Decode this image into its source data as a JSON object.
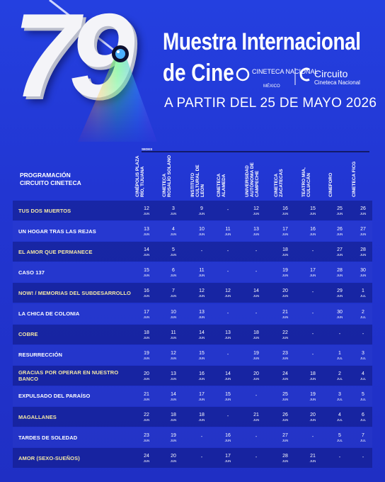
{
  "header": {
    "number": "79",
    "title_line1": "Muestra Internacional",
    "title_line2": "de Cine",
    "logo1_name": "CINETECA NACIONAL",
    "logo1_sub": "MÉXICO",
    "logo2_name": "Circuito",
    "logo2_sub": "Cineteca Nacional",
    "date": "A PARTIR DEL 25 DE MAYO 2026"
  },
  "table": {
    "section_label": "PROGRAMACIÓN CIRCUITO CINETECA",
    "venues_label": "SEDES",
    "venues": [
      "CINÉPOLIS PLAZA RÍO, TIJUANA",
      "CINETECA ROSALÍO SOLANO",
      "INSTITUTO CULTURAL DE LEÓN",
      "CINETECA ALAMEDA",
      "UNIVERSIDAD AUTÓNOMA DE CAMPECHE",
      "CINETECA ZACATECAS",
      "TEATRO MIA, CULIACÁN",
      "CINEFORO",
      "CINETECA FICG"
    ],
    "rows": [
      {
        "film": "TUS DOS MUERTOS",
        "cells": [
          {
            "day": "12",
            "month": "JUN"
          },
          {
            "day": "3",
            "month": "JUN"
          },
          {
            "day": "9",
            "month": "JUN"
          },
          "-",
          {
            "day": "12",
            "month": "JUN"
          },
          {
            "day": "16",
            "month": "JUN"
          },
          {
            "day": "15",
            "month": "JUN"
          },
          {
            "day": "25",
            "month": "JUN"
          },
          {
            "day": "26",
            "month": "JUN"
          }
        ]
      },
      {
        "film": "UN HOGAR TRAS LAS REJAS",
        "cells": [
          {
            "day": "13",
            "month": "JUN"
          },
          {
            "day": "4",
            "month": "JUN"
          },
          {
            "day": "10",
            "month": "JUN"
          },
          {
            "day": "11",
            "month": "JUN"
          },
          {
            "day": "13",
            "month": "JUN"
          },
          {
            "day": "17",
            "month": "JUN"
          },
          {
            "day": "16",
            "month": "JUN"
          },
          {
            "day": "26",
            "month": "JUN"
          },
          {
            "day": "27",
            "month": "JUN"
          }
        ]
      },
      {
        "film": "EL AMOR QUE PERMANECE",
        "cells": [
          {
            "day": "14",
            "month": "JUN"
          },
          {
            "day": "5",
            "month": "JUN"
          },
          "-",
          "-",
          "-",
          {
            "day": "18",
            "month": "JUN"
          },
          "-",
          {
            "day": "27",
            "month": "JUN"
          },
          {
            "day": "28",
            "month": "JUN"
          }
        ]
      },
      {
        "film": "CASO 137",
        "cells": [
          {
            "day": "15",
            "month": "JUN"
          },
          {
            "day": "6",
            "month": "JUN"
          },
          {
            "day": "11",
            "month": "JUN"
          },
          "-",
          "-",
          {
            "day": "19",
            "month": "JUN"
          },
          {
            "day": "17",
            "month": "JUN"
          },
          {
            "day": "28",
            "month": "JUN"
          },
          {
            "day": "30",
            "month": "JUN"
          }
        ]
      },
      {
        "film": "NOW! / MEMORIAS DEL SUBDESARROLLO",
        "cells": [
          {
            "day": "16",
            "month": "JUN"
          },
          {
            "day": "7",
            "month": "JUN"
          },
          {
            "day": "12",
            "month": "JUN"
          },
          {
            "day": "12",
            "month": "JUN"
          },
          {
            "day": "14",
            "month": "JUN"
          },
          {
            "day": "20",
            "month": "JUN"
          },
          "-",
          {
            "day": "29",
            "month": "JUN"
          },
          {
            "day": "1",
            "month": "JUL"
          }
        ]
      },
      {
        "film": "LA CHICA DE COLONIA",
        "cells": [
          {
            "day": "17",
            "month": "JUN"
          },
          {
            "day": "10",
            "month": "JUN"
          },
          {
            "day": "13",
            "month": "JUN"
          },
          "-",
          "-",
          {
            "day": "21",
            "month": "JUN"
          },
          "-",
          {
            "day": "30",
            "month": "JUN"
          },
          {
            "day": "2",
            "month": "JUL"
          }
        ]
      },
      {
        "film": "COBRE",
        "cells": [
          {
            "day": "18",
            "month": "JUN"
          },
          {
            "day": "11",
            "month": "JUN"
          },
          {
            "day": "14",
            "month": "JUN"
          },
          {
            "day": "13",
            "month": "JUN"
          },
          {
            "day": "18",
            "month": "JUN"
          },
          {
            "day": "22",
            "month": "JUN"
          },
          "-",
          "-",
          "-"
        ]
      },
      {
        "film": "RESURRECCIÓN",
        "cells": [
          {
            "day": "19",
            "month": "JUN"
          },
          {
            "day": "12",
            "month": "JUN"
          },
          {
            "day": "15",
            "month": "JUN"
          },
          "-",
          {
            "day": "19",
            "month": "JUN"
          },
          {
            "day": "23",
            "month": "JUN"
          },
          "-",
          {
            "day": "1",
            "month": "JUL"
          },
          {
            "day": "3",
            "month": "JUL"
          }
        ]
      },
      {
        "film": "GRACIAS POR OPERAR EN NUESTRO BANCO",
        "cells": [
          {
            "day": "20",
            "month": "JUN"
          },
          {
            "day": "13",
            "month": "JUN"
          },
          {
            "day": "16",
            "month": "JUN"
          },
          {
            "day": "14",
            "month": "JUN"
          },
          {
            "day": "20",
            "month": "JUN"
          },
          {
            "day": "24",
            "month": "JUN"
          },
          {
            "day": "18",
            "month": "JUN"
          },
          {
            "day": "2",
            "month": "JUL"
          },
          {
            "day": "4",
            "month": "JUL"
          }
        ]
      },
      {
        "film": "EXPULSADO DEL PARAÍSO",
        "cells": [
          {
            "day": "21",
            "month": "JUN"
          },
          {
            "day": "14",
            "month": "JUN"
          },
          {
            "day": "17",
            "month": "JUN"
          },
          {
            "day": "15",
            "month": "JUN"
          },
          "-",
          {
            "day": "25",
            "month": "JUN"
          },
          {
            "day": "19",
            "month": "JUN"
          },
          {
            "day": "3",
            "month": "JUL"
          },
          {
            "day": "5",
            "month": "JUL"
          }
        ]
      },
      {
        "film": "MAGALLANES",
        "cells": [
          {
            "day": "22",
            "month": "JUN"
          },
          {
            "day": "18",
            "month": "JUN"
          },
          {
            "day": "18",
            "month": "JUN"
          },
          "-",
          {
            "day": "21",
            "month": "JUN"
          },
          {
            "day": "26",
            "month": "JUN"
          },
          {
            "day": "20",
            "month": "JUN"
          },
          {
            "day": "4",
            "month": "JUL"
          },
          {
            "day": "6",
            "month": "JUL"
          }
        ]
      },
      {
        "film": "TARDES DE SOLEDAD",
        "cells": [
          {
            "day": "23",
            "month": "JUN"
          },
          {
            "day": "19",
            "month": "JUN"
          },
          "-",
          {
            "day": "16",
            "month": "JUN"
          },
          "-",
          {
            "day": "27",
            "month": "JUN"
          },
          "-",
          {
            "day": "5",
            "month": "JUL"
          },
          {
            "day": "7",
            "month": "JUL"
          }
        ]
      },
      {
        "film": "AMOR (SEXO-SUEÑOS)",
        "cells": [
          {
            "day": "24",
            "month": "JUN"
          },
          {
            "day": "20",
            "month": "JUN"
          },
          "-",
          {
            "day": "17",
            "month": "JUN"
          },
          "-",
          {
            "day": "28",
            "month": "JUN"
          },
          {
            "day": "21",
            "month": "JUN"
          },
          "-",
          "-"
        ]
      }
    ]
  }
}
